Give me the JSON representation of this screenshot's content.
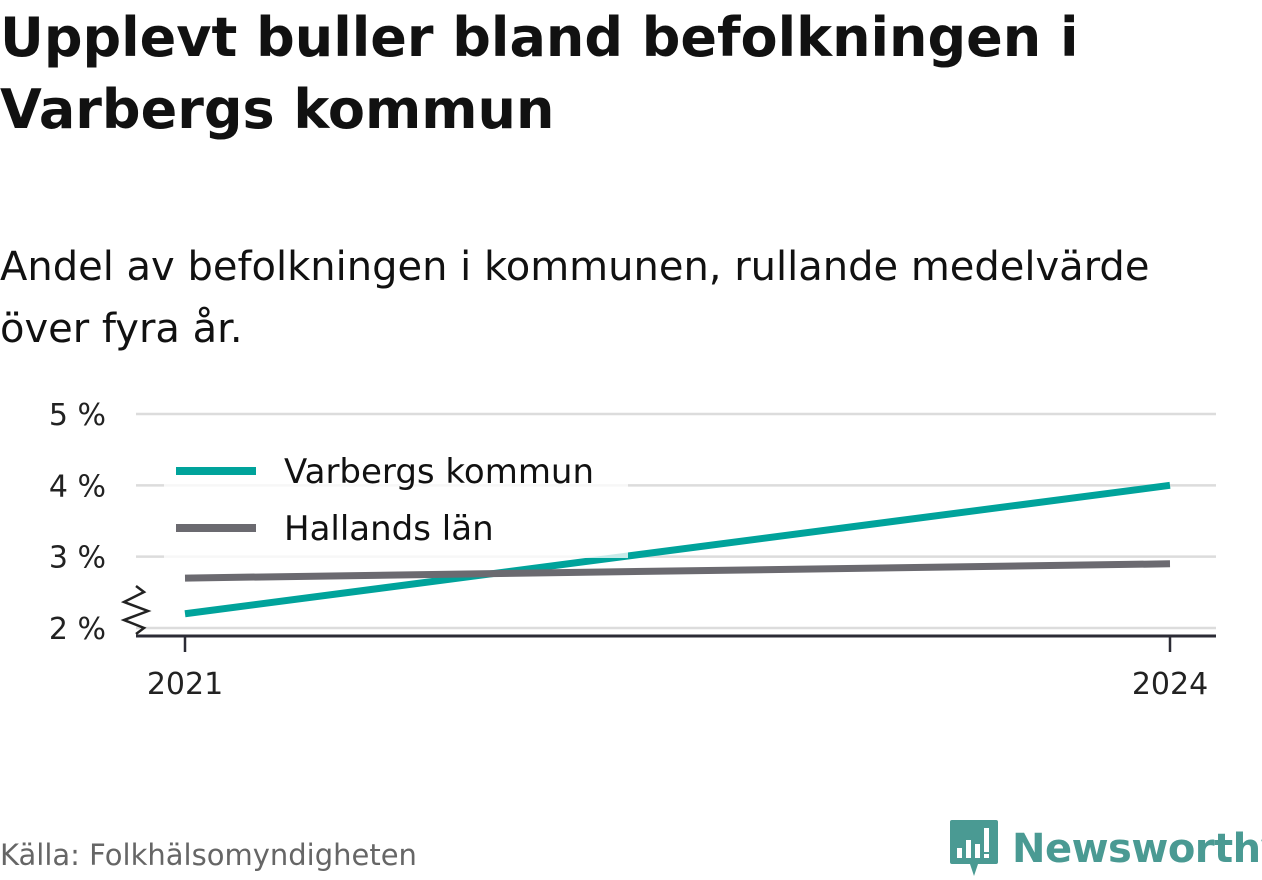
{
  "title": "Upplevt buller bland befolkningen i Varbergs kommun",
  "subtitle": "Andel av befolkningen i kommunen, rullande medelvärde över fyra år.",
  "source": "Källa: Folkhälsomyndigheten",
  "brand": {
    "name": "Newsworthy",
    "icon": "bar-chart-speech-bubble-icon",
    "color": "#4a9a93"
  },
  "chart_data": {
    "type": "line",
    "x": [
      "2021",
      "2024"
    ],
    "series": [
      {
        "name": "Varbergs kommun",
        "values": [
          2.2,
          4.0
        ],
        "color": "#00a39b"
      },
      {
        "name": "Hallands län",
        "values": [
          2.7,
          2.9
        ],
        "color": "#6b6a70"
      }
    ],
    "ylim": [
      2,
      5
    ],
    "yticks": [
      2,
      3,
      4,
      5
    ],
    "ytick_labels": [
      "2 %",
      "3 %",
      "4 %",
      "5 %"
    ],
    "xtick_labels": [
      "2021",
      "2024"
    ],
    "y_axis_break": true,
    "grid": true,
    "legend": "top-left"
  }
}
